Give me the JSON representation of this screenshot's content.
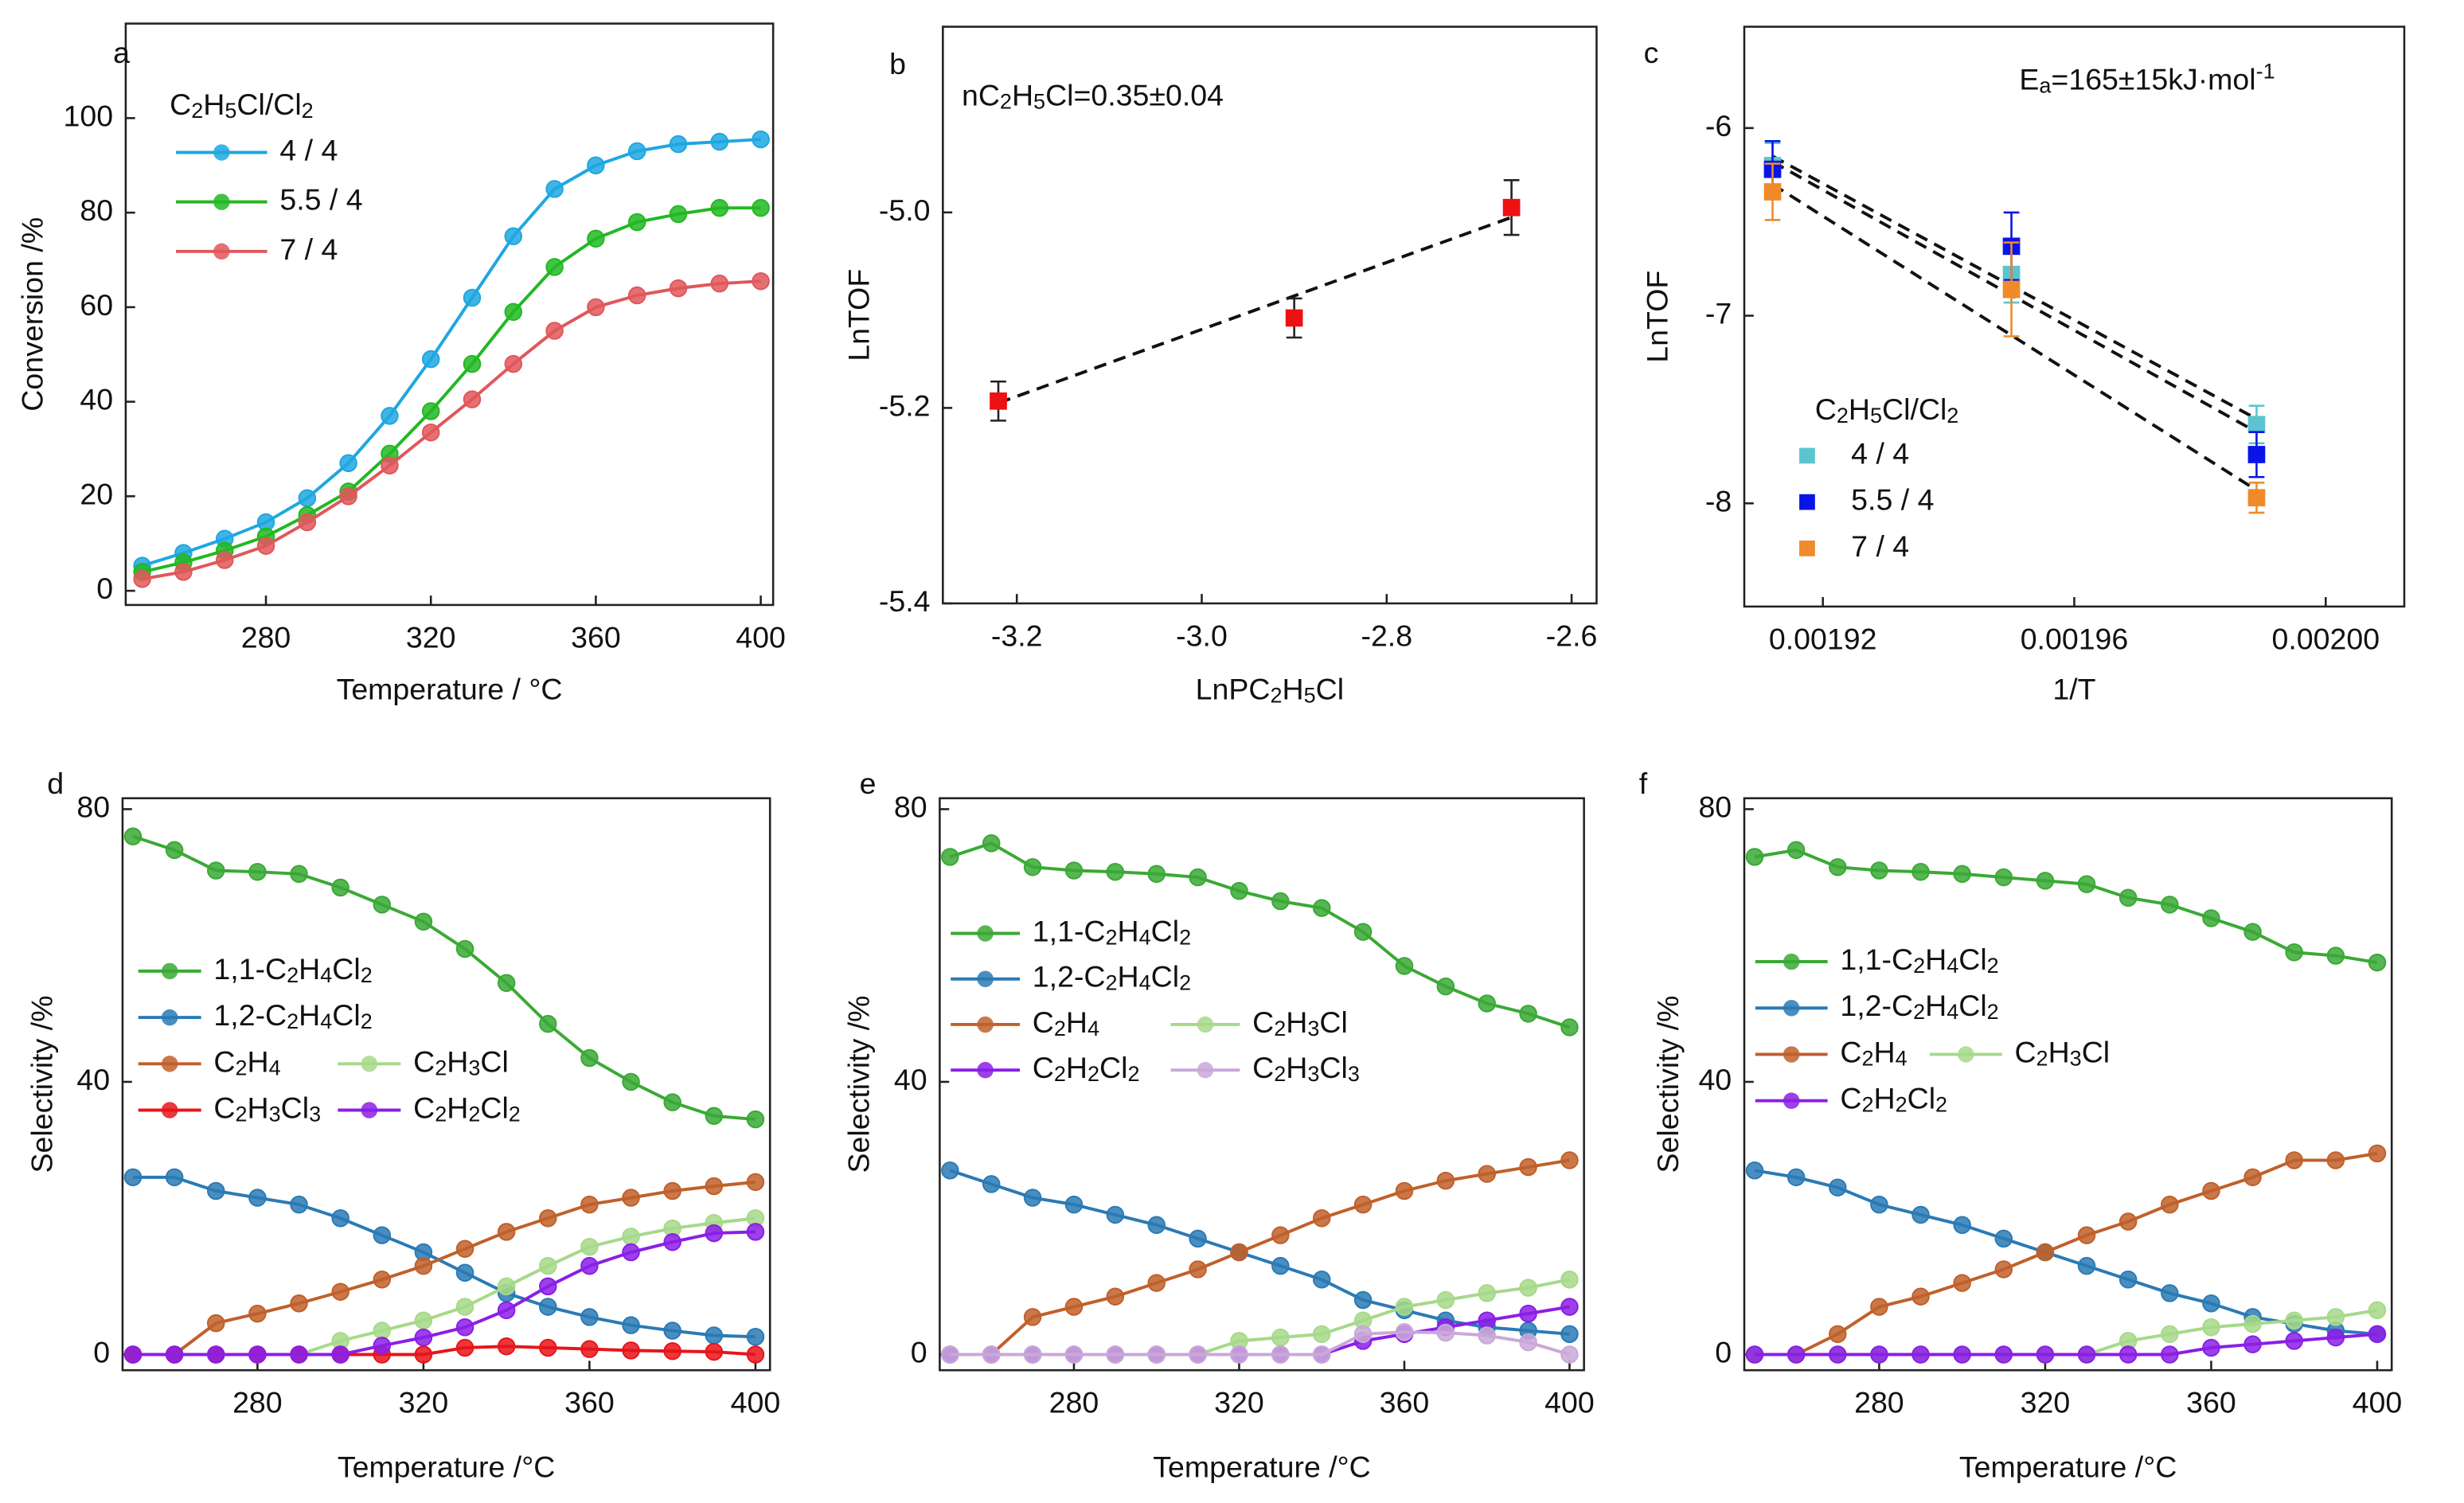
{
  "chart_data": [
    {
      "type": "line",
      "label": "a",
      "x": [
        250,
        260,
        270,
        280,
        290,
        300,
        310,
        320,
        330,
        340,
        350,
        360,
        370,
        380,
        390,
        400
      ],
      "xlim": [
        246,
        403
      ],
      "ylim": [
        -3,
        120
      ],
      "xticks": [
        280,
        320,
        360,
        400
      ],
      "yticks": [
        0,
        20,
        40,
        60,
        80,
        100
      ],
      "x_label": "Temperature / °C",
      "y_label": "Conversion /%",
      "legend_title": "C2H5Cl/Cl2",
      "series": [
        {
          "name": "4 / 4",
          "color": "#1ea7e1",
          "values": [
            5.3,
            8,
            11,
            14.5,
            19.6,
            27,
            37,
            49,
            62,
            75,
            85,
            90,
            93,
            94.5,
            95,
            95.5
          ]
        },
        {
          "name": "5.5 / 4",
          "color": "#22b822",
          "values": [
            4,
            6,
            8.5,
            11.5,
            16,
            21,
            29,
            38,
            48,
            59,
            68.5,
            74.5,
            78,
            79.7,
            81,
            81
          ]
        },
        {
          "name": "7 / 4",
          "color": "#e0575a",
          "values": [
            2.5,
            4,
            6.5,
            9.5,
            14.5,
            20,
            26.5,
            33.5,
            40.5,
            48,
            55,
            60,
            62.5,
            64,
            65,
            65.5
          ]
        }
      ]
    },
    {
      "type": "scatter",
      "label": "b",
      "x": [
        -3.22,
        -2.9,
        -2.665
      ],
      "xlim": [
        -3.28,
        -2.573
      ],
      "ylim": [
        -5.4,
        -4.81
      ],
      "xticks": [
        -3.2,
        {
          "value": -3,
          "label": "-3.0"
        },
        -2.8,
        -2.6
      ],
      "yticks": [
        -5.4,
        -5.2,
        {
          "value": -5,
          "label": "-5.0"
        }
      ],
      "x_label": "LnPC2H5Cl",
      "y_label": "LnTOF",
      "annotation": "nC2H5Cl=0.35±0.04",
      "series": [
        {
          "color": "#ee1111",
          "values": [
            -5.193,
            -5.108,
            -4.995
          ],
          "errors": [
            0.02,
            0.02,
            0.028
          ]
        }
      ],
      "fit": {
        "x": [
          -3.22,
          -2.665
        ],
        "y": [
          -5.195,
          -5.005
        ]
      }
    },
    {
      "type": "scatter",
      "label": "c",
      "x": [
        0.001912,
        0.00195,
        0.001989
      ],
      "xlim": [
        0.0019075,
        0.0020125
      ],
      "ylim": [
        -8.55,
        -5.46
      ],
      "xticks": [
        0.00192,
        0.00196,
        {
          "value": 0.002,
          "label": "0.00200"
        }
      ],
      "yticks": [
        -8,
        -7,
        -6
      ],
      "x_label": "1/T",
      "y_label": "LnTOF",
      "annotation": "Ea=165±15kJ·mol-1",
      "legend_title": "C2H5Cl/Cl2",
      "series": [
        {
          "name": "4 / 4",
          "color": "#5bc4cf",
          "values": [
            -6.2,
            -6.78,
            -7.58
          ],
          "errors": [
            0.12,
            0.15,
            0.1
          ],
          "fit": {
            "x": [
              0.001912,
              0.001989
            ],
            "y": [
              -6.15,
              -7.55
            ]
          }
        },
        {
          "name": "5.5 / 4",
          "color": "#0a14e6",
          "values": [
            -6.22,
            -6.63,
            -7.74
          ],
          "errors": [
            0.15,
            0.18,
            0.12
          ],
          "fit": {
            "x": [
              0.001912,
              0.001989
            ],
            "y": [
              -6.18,
              -7.62
            ]
          }
        },
        {
          "name": "7 / 4",
          "color": "#f08a2a",
          "values": [
            -6.34,
            -6.86,
            -7.97
          ],
          "errors": [
            0.15,
            0.25,
            0.08
          ],
          "fit": {
            "x": [
              0.001912,
              0.001989
            ],
            "y": [
              -6.3,
              -7.93
            ]
          }
        }
      ]
    },
    {
      "type": "line",
      "label": "d",
      "x": [
        250,
        260,
        270,
        280,
        290,
        300,
        310,
        320,
        330,
        340,
        350,
        360,
        370,
        380,
        390,
        400
      ],
      "xlim": [
        247.5,
        403.5
      ],
      "ylim": [
        -2.3,
        81.6
      ],
      "xticks": [
        280,
        320,
        360,
        400
      ],
      "yticks": [
        0,
        40,
        80
      ],
      "x_label": "Temperature /°C",
      "y_label": "Selectivity /%",
      "series": [
        {
          "name": "1,1-C2H4Cl2",
          "color": "#3aa935",
          "values": [
            76,
            74,
            71,
            70.8,
            70.5,
            68.5,
            66,
            63.5,
            59.5,
            54.5,
            48.5,
            43.5,
            40,
            37,
            35,
            34.5
          ]
        },
        {
          "name": "1,2-C2H4Cl2",
          "color": "#2a7ab5",
          "values": [
            26,
            26,
            24,
            23,
            22,
            20,
            17.5,
            15,
            12,
            9,
            7,
            5.5,
            4.3,
            3.5,
            2.8,
            2.6
          ]
        },
        {
          "name": "C2H4",
          "color": "#c0602a",
          "values": [
            0,
            0,
            4.6,
            6,
            7.5,
            9.2,
            11,
            13,
            15.5,
            18,
            20,
            22,
            23,
            24,
            24.7,
            25.3
          ]
        },
        {
          "name": "C2H3Cl",
          "color": "#a6d98a",
          "values": [
            0,
            0,
            0,
            0,
            0,
            2,
            3.5,
            5,
            7,
            10,
            13,
            15.8,
            17.3,
            18.5,
            19.3,
            20
          ]
        },
        {
          "name": "C2H3Cl3",
          "color": "#e8141a",
          "values": [
            0,
            0,
            0,
            0,
            0,
            0,
            0,
            0,
            1,
            1.2,
            1,
            0.8,
            0.6,
            0.5,
            0.4,
            0
          ]
        },
        {
          "name": "C2H2Cl2",
          "color": "#8b1ee6",
          "values": [
            0,
            0,
            0,
            0,
            0,
            0,
            1.3,
            2.5,
            4,
            6.5,
            10,
            13,
            15,
            16.5,
            17.8,
            18
          ]
        }
      ]
    },
    {
      "type": "line",
      "label": "e",
      "x": [
        250,
        260,
        270,
        280,
        290,
        300,
        310,
        320,
        330,
        340,
        350,
        360,
        370,
        380,
        390,
        400
      ],
      "xlim": [
        247.5,
        403.5
      ],
      "ylim": [
        -2.3,
        81.6
      ],
      "xticks": [
        280,
        320,
        360,
        400
      ],
      "yticks": [
        0,
        40,
        80
      ],
      "x_label": "Temperature /°C",
      "y_label": "Selectivity /%",
      "series": [
        {
          "name": "1,1-C2H4Cl2",
          "color": "#3aa935",
          "values": [
            73,
            75,
            71.5,
            71,
            70.8,
            70.5,
            70,
            68,
            66.5,
            65.5,
            62,
            57,
            54,
            51.5,
            50,
            48
          ]
        },
        {
          "name": "1,2-C2H4Cl2",
          "color": "#2a7ab5",
          "values": [
            27,
            25,
            23,
            22,
            20.5,
            19,
            17,
            15,
            13,
            11,
            8,
            6.5,
            5,
            4,
            3.5,
            3
          ]
        },
        {
          "name": "C2H4",
          "color": "#c0602a",
          "values": [
            0,
            0,
            5.5,
            7,
            8.5,
            10.5,
            12.5,
            15,
            17.5,
            20,
            22,
            24,
            25.5,
            26.5,
            27.5,
            28.5
          ]
        },
        {
          "name": "C2H3Cl",
          "color": "#a6d98a",
          "values": [
            0,
            0,
            0,
            0,
            0,
            0,
            0,
            2,
            2.5,
            3,
            5,
            7,
            8,
            9,
            9.8,
            11
          ]
        },
        {
          "name": "C2H2Cl2",
          "color": "#8b1ee6",
          "values": [
            0,
            0,
            0,
            0,
            0,
            0,
            0,
            0,
            0,
            0,
            2,
            3,
            4,
            5,
            6,
            7
          ]
        },
        {
          "name": "C2H3Cl3",
          "color": "#c9a8d8",
          "values": [
            0,
            0,
            0,
            0,
            0,
            0,
            0,
            0,
            0,
            0,
            3,
            3.3,
            3.2,
            2.8,
            1.8,
            0
          ]
        }
      ]
    },
    {
      "type": "line",
      "label": "f",
      "x": [
        250,
        260,
        270,
        280,
        290,
        300,
        310,
        320,
        330,
        340,
        350,
        360,
        370,
        380,
        390,
        400
      ],
      "xlim": [
        247.5,
        403.5
      ],
      "ylim": [
        -2.3,
        81.6
      ],
      "xticks": [
        280,
        320,
        360,
        400
      ],
      "yticks": [
        0,
        40,
        80
      ],
      "x_label": "Temperature /°C",
      "y_label": "Selectivity /%",
      "series": [
        {
          "name": "1,1-C2H4Cl2",
          "color": "#3aa935",
          "values": [
            73,
            74,
            71.5,
            71,
            70.8,
            70.5,
            70,
            69.5,
            69,
            67,
            66,
            64,
            62,
            59,
            58.5,
            57.5
          ]
        },
        {
          "name": "1,2-C2H4Cl2",
          "color": "#2a7ab5",
          "values": [
            27,
            26,
            24.5,
            22,
            20.5,
            19,
            17,
            15,
            13,
            11,
            9,
            7.5,
            5.5,
            4.5,
            3.5,
            3
          ]
        },
        {
          "name": "C2H4",
          "color": "#c0602a",
          "values": [
            0,
            0,
            3,
            7,
            8.5,
            10.5,
            12.5,
            15,
            17.5,
            19.5,
            22,
            24,
            26,
            28.5,
            28.5,
            29.5
          ]
        },
        {
          "name": "C2H3Cl",
          "color": "#a6d98a",
          "values": [
            0,
            0,
            0,
            0,
            0,
            0,
            0,
            0,
            0,
            2,
            3,
            4,
            4.5,
            5,
            5.5,
            6.5
          ]
        },
        {
          "name": "C2H2Cl2",
          "color": "#8b1ee6",
          "values": [
            0,
            0,
            0,
            0,
            0,
            0,
            0,
            0,
            0,
            0,
            0,
            1,
            1.5,
            2,
            2.5,
            3
          ]
        }
      ]
    }
  ]
}
